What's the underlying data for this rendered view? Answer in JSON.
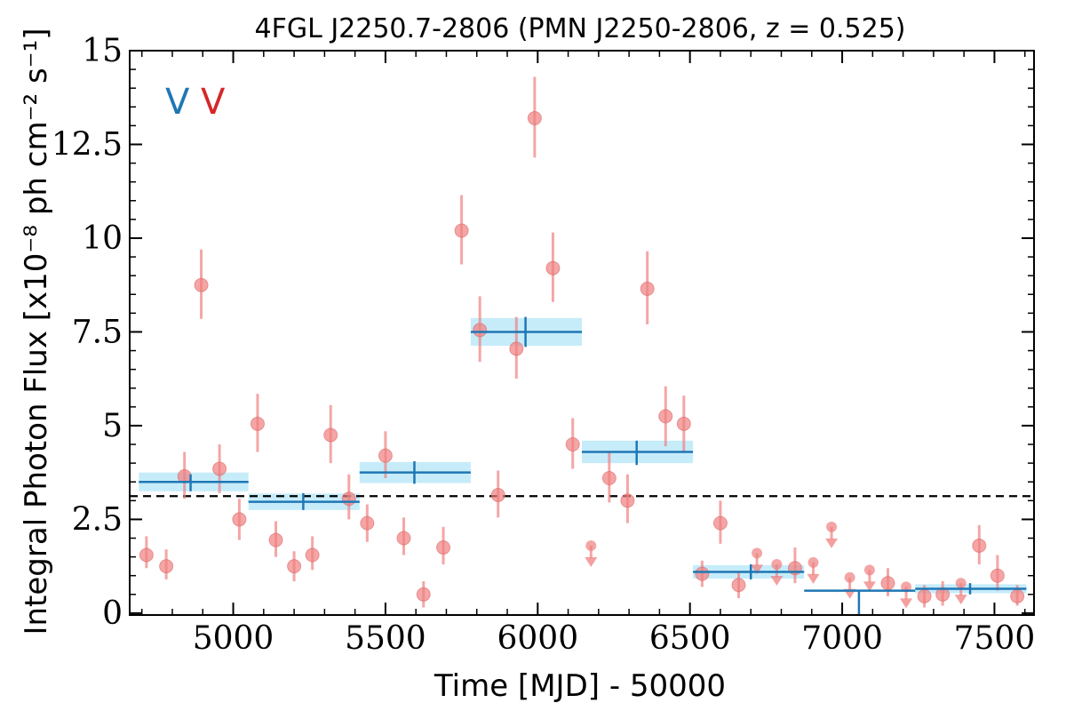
{
  "chart_data": {
    "type": "scatter",
    "title": "4FGL J2250.7-2806 (PMN J2250-2806, z = 0.525)",
    "xlabel": "Time [MJD] - 50000",
    "ylabel": "Integral Photon Flux [x10⁻⁸ ph cm⁻² s⁻¹]",
    "xlim": [
      4660,
      7630
    ],
    "ylim": [
      -0.05,
      15
    ],
    "xticks": [
      5000,
      5500,
      6000,
      6500,
      7000,
      7500
    ],
    "xtick_labels": [
      "5000",
      "5500",
      "6000",
      "6500",
      "7000",
      "7500"
    ],
    "yticks": [
      0,
      2.5,
      5,
      7.5,
      10,
      12.5,
      15
    ],
    "ytick_labels": [
      "0",
      "2.5",
      "5",
      "7.5",
      "10",
      "12.5",
      "15"
    ],
    "average_flux": 3.12,
    "variability_labels": [
      {
        "text": "V",
        "color": "#1f77b4"
      },
      {
        "text": "V",
        "color": "#d62728"
      }
    ],
    "colors": {
      "points": "#f08080",
      "binned": "#1f77b4",
      "binned_band": "#c6ecfa",
      "average_line": "#000000"
    },
    "series": [
      {
        "kind": "detections",
        "points": [
          {
            "x": 4715,
            "y": 1.55,
            "lo": 1.2,
            "hi": 2.05
          },
          {
            "x": 4780,
            "y": 1.25,
            "lo": 0.9,
            "hi": 1.7
          },
          {
            "x": 4840,
            "y": 3.65,
            "lo": 3.05,
            "hi": 4.3
          },
          {
            "x": 4895,
            "y": 8.75,
            "lo": 7.85,
            "hi": 9.7
          },
          {
            "x": 4955,
            "y": 3.85,
            "lo": 3.2,
            "hi": 4.5
          },
          {
            "x": 5020,
            "y": 2.5,
            "lo": 1.95,
            "hi": 3.05
          },
          {
            "x": 5080,
            "y": 5.05,
            "lo": 4.3,
            "hi": 5.85
          },
          {
            "x": 5140,
            "y": 1.95,
            "lo": 1.5,
            "hi": 2.45
          },
          {
            "x": 5200,
            "y": 1.25,
            "lo": 0.85,
            "hi": 1.65
          },
          {
            "x": 5260,
            "y": 1.55,
            "lo": 1.15,
            "hi": 2.05
          },
          {
            "x": 5320,
            "y": 4.75,
            "lo": 4.0,
            "hi": 5.55
          },
          {
            "x": 5380,
            "y": 3.05,
            "lo": 2.5,
            "hi": 3.7
          },
          {
            "x": 5440,
            "y": 2.4,
            "lo": 1.9,
            "hi": 2.9
          },
          {
            "x": 5500,
            "y": 4.2,
            "lo": 3.6,
            "hi": 4.85
          },
          {
            "x": 5560,
            "y": 2.0,
            "lo": 1.55,
            "hi": 2.55
          },
          {
            "x": 5625,
            "y": 0.5,
            "lo": 0.15,
            "hi": 0.85
          },
          {
            "x": 5690,
            "y": 1.75,
            "lo": 1.3,
            "hi": 2.3
          },
          {
            "x": 5750,
            "y": 10.2,
            "lo": 9.3,
            "hi": 11.15
          },
          {
            "x": 5810,
            "y": 7.55,
            "lo": 6.7,
            "hi": 8.45
          },
          {
            "x": 5870,
            "y": 3.15,
            "lo": 2.55,
            "hi": 3.8
          },
          {
            "x": 5930,
            "y": 7.05,
            "lo": 6.25,
            "hi": 7.9
          },
          {
            "x": 5990,
            "y": 13.2,
            "lo": 12.15,
            "hi": 14.3
          },
          {
            "x": 6050,
            "y": 9.2,
            "lo": 8.3,
            "hi": 10.15
          },
          {
            "x": 6115,
            "y": 4.5,
            "lo": 3.85,
            "hi": 5.2
          },
          {
            "x": 6235,
            "y": 3.6,
            "lo": 2.95,
            "hi": 4.3
          },
          {
            "x": 6295,
            "y": 3.0,
            "lo": 2.4,
            "hi": 3.7
          },
          {
            "x": 6360,
            "y": 8.65,
            "lo": 7.7,
            "hi": 9.65
          },
          {
            "x": 6420,
            "y": 5.25,
            "lo": 4.45,
            "hi": 6.05
          },
          {
            "x": 6480,
            "y": 5.05,
            "lo": 4.3,
            "hi": 5.8
          },
          {
            "x": 6540,
            "y": 1.05,
            "lo": 0.7,
            "hi": 1.4
          },
          {
            "x": 6600,
            "y": 2.4,
            "lo": 1.85,
            "hi": 3.0
          },
          {
            "x": 6660,
            "y": 0.75,
            "lo": 0.4,
            "hi": 1.1
          },
          {
            "x": 6845,
            "y": 1.2,
            "lo": 0.8,
            "hi": 1.75
          },
          {
            "x": 7150,
            "y": 0.8,
            "lo": 0.45,
            "hi": 1.2
          },
          {
            "x": 7270,
            "y": 0.45,
            "lo": 0.15,
            "hi": 0.75
          },
          {
            "x": 7330,
            "y": 0.5,
            "lo": 0.2,
            "hi": 0.85
          },
          {
            "x": 7450,
            "y": 1.8,
            "lo": 1.3,
            "hi": 2.35
          },
          {
            "x": 7510,
            "y": 1.0,
            "lo": 0.6,
            "hi": 1.55
          },
          {
            "x": 7575,
            "y": 0.45,
            "lo": 0.2,
            "hi": 0.75
          }
        ]
      },
      {
        "kind": "upper_limits",
        "points": [
          {
            "x": 6175,
            "y": 1.8
          },
          {
            "x": 6720,
            "y": 1.6
          },
          {
            "x": 6785,
            "y": 1.3
          },
          {
            "x": 6905,
            "y": 1.35
          },
          {
            "x": 6965,
            "y": 2.3
          },
          {
            "x": 7025,
            "y": 0.95
          },
          {
            "x": 7090,
            "y": 1.15
          },
          {
            "x": 7210,
            "y": 0.7
          },
          {
            "x": 7390,
            "y": 0.8
          }
        ]
      },
      {
        "kind": "binned",
        "bins": [
          {
            "x0": 4690,
            "x1": 5050,
            "y": 3.5,
            "err": 0.25,
            "xc": 4860,
            "ylo": 3.25,
            "yhi": 3.7
          },
          {
            "x0": 5050,
            "x1": 5415,
            "y": 2.97,
            "err": 0.22,
            "xc": 5230,
            "ylo": 2.75,
            "yhi": 3.2
          },
          {
            "x0": 5415,
            "x1": 5780,
            "y": 3.75,
            "err": 0.28,
            "xc": 5595,
            "ylo": 3.45,
            "yhi": 4.05
          },
          {
            "x0": 5780,
            "x1": 6145,
            "y": 7.5,
            "err": 0.37,
            "xc": 5960,
            "ylo": 7.1,
            "yhi": 7.9
          },
          {
            "x0": 6145,
            "x1": 6510,
            "y": 4.3,
            "err": 0.3,
            "xc": 6325,
            "ylo": 3.95,
            "yhi": 4.6
          },
          {
            "x0": 6510,
            "x1": 6875,
            "y": 1.1,
            "err": 0.18,
            "xc": 6700,
            "ylo": 0.9,
            "yhi": 1.3
          },
          {
            "x0": 6875,
            "x1": 7240,
            "y": 0.6,
            "err": 0.0,
            "xc": 7055,
            "ylo": -0.05,
            "yhi": 0.6
          },
          {
            "x0": 7240,
            "x1": 7605,
            "y": 0.65,
            "err": 0.12,
            "xc": 7420,
            "ylo": 0.5,
            "yhi": 0.8
          }
        ]
      }
    ]
  }
}
